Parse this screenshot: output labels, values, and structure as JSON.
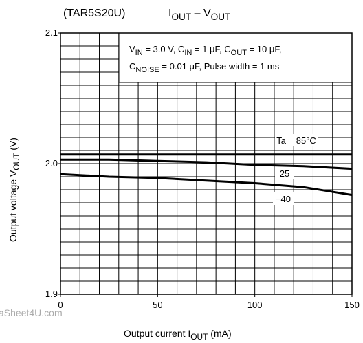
{
  "chart_data": {
    "type": "line",
    "subtitle": "(TAR5S20U)",
    "title": [
      {
        "text": "I"
      },
      {
        "text": "OUT",
        "sub": true
      },
      {
        "text": " – V"
      },
      {
        "text": "OUT",
        "sub": true
      }
    ],
    "ylabel": [
      {
        "text": "Output voltage   V"
      },
      {
        "text": "OUT",
        "sub": true
      },
      {
        "text": "   (V)"
      }
    ],
    "xlabel": [
      {
        "text": "Output current   I"
      },
      {
        "text": "OUT",
        "sub": true
      },
      {
        "text": "   (mA)"
      }
    ],
    "annotation": [
      [
        {
          "text": "V"
        },
        {
          "text": "IN",
          "sub": true
        },
        {
          "text": " = 3.0 V, C"
        },
        {
          "text": "IN",
          "sub": true
        },
        {
          "text": " = 1 μF, C"
        },
        {
          "text": "OUT",
          "sub": true
        },
        {
          "text": " = 10 μF,"
        }
      ],
      [
        {
          "text": "C"
        },
        {
          "text": "NOISE",
          "sub": true
        },
        {
          "text": " = 0.01 μF, Pulse width = 1 ms"
        }
      ]
    ],
    "watermark": "aSheet4U.com",
    "x": [
      0,
      25,
      50,
      75,
      100,
      125,
      150
    ],
    "series": [
      {
        "name": "Ta = 85°C",
        "color": "#000000",
        "values": [
          2.007,
          2.007,
          2.007,
          2.007,
          2.007,
          2.007,
          2.007
        ]
      },
      {
        "name": "25",
        "color": "#000000",
        "values": [
          2.003,
          2.003,
          2.002,
          2.001,
          1.999,
          1.998,
          1.996
        ]
      },
      {
        "name": "−40",
        "color": "#000000",
        "values": [
          1.992,
          1.99,
          1.989,
          1.987,
          1.985,
          1.982,
          1.976
        ]
      }
    ],
    "xlim": [
      0,
      150
    ],
    "xticks": [
      0,
      50,
      100,
      150
    ],
    "ylim": [
      1.9,
      2.1
    ],
    "yticks": [
      1.9,
      {
        "value": 2,
        "label": "2.0"
      },
      2.1
    ],
    "grid": true,
    "xgrid_step": 10,
    "ygrid_step": 0.01
  }
}
